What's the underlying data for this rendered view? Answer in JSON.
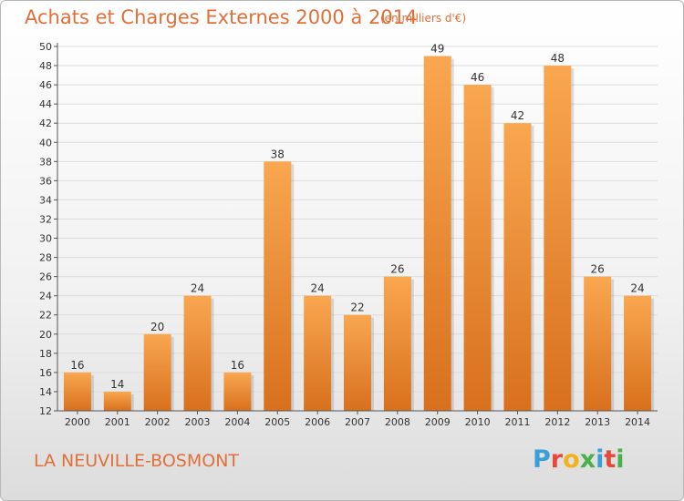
{
  "header": {
    "title": "Achats et Charges Externes 2000 à 2014",
    "unit": "(en milliers d'€)"
  },
  "footer": {
    "commune": "LA NEUVILLE-BOSMONT",
    "brand": [
      "P",
      "r",
      "o",
      "x",
      "i",
      "t",
      "i"
    ]
  },
  "colors": {
    "accent": "#e0703a",
    "bar_light": "#f9a750",
    "bar_dark": "#d8701c",
    "brand": [
      "#3a9fd8",
      "#e8483a",
      "#f2b21c",
      "#4ab04a",
      "#3a9fd8",
      "#e8483a",
      "#4ab04a"
    ]
  },
  "chart_data": {
    "type": "bar",
    "categories": [
      "2000",
      "2001",
      "2002",
      "2003",
      "2004",
      "2005",
      "2006",
      "2007",
      "2008",
      "2009",
      "2010",
      "2011",
      "2012",
      "2013",
      "2014"
    ],
    "values": [
      16,
      14,
      20,
      24,
      16,
      38,
      24,
      22,
      26,
      49,
      46,
      42,
      48,
      26,
      24
    ],
    "ylim": [
      12,
      50
    ],
    "yticks": [
      12,
      14,
      16,
      18,
      20,
      22,
      24,
      26,
      28,
      30,
      32,
      34,
      36,
      38,
      40,
      42,
      44,
      46,
      48,
      50
    ],
    "grid": true
  }
}
